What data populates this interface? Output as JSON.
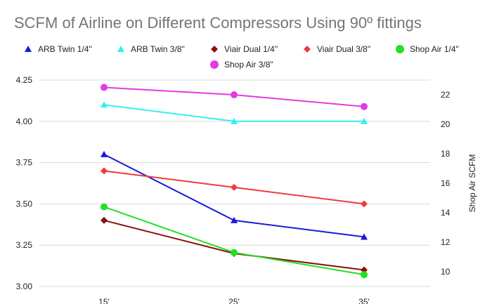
{
  "chart_data": {
    "type": "line",
    "title": "SCFM of Airline on Different Compressors Using 90º fittings",
    "categories": [
      "15'",
      "25'",
      "35'"
    ],
    "left_axis": {
      "label": "",
      "ylim": [
        3.0,
        4.25
      ],
      "ticks": [
        "3.00",
        "3.25",
        "3.50",
        "3.75",
        "4.00",
        "4.25"
      ]
    },
    "right_axis": {
      "label": "Shop Air SCFM",
      "ylim": [
        9,
        23
      ],
      "ticks": [
        "10",
        "12",
        "14",
        "16",
        "18",
        "20",
        "22"
      ]
    },
    "grid": true,
    "legend_position": "top",
    "series": [
      {
        "name": "ARB Twin 1/4\"",
        "axis": "left",
        "marker": "triangle",
        "color": "#1a1adb",
        "values": [
          3.8,
          3.4,
          3.3
        ]
      },
      {
        "name": "ARB Twin 3/8\"",
        "axis": "left",
        "marker": "triangle",
        "color": "#33f0f0",
        "values": [
          4.1,
          4.0,
          4.0
        ]
      },
      {
        "name": "Viair Dual 1/4\"",
        "axis": "left",
        "marker": "diamond",
        "color": "#8b0e0e",
        "values": [
          3.4,
          3.2,
          3.1
        ]
      },
      {
        "name": "Viair Dual 3/8\"",
        "axis": "left",
        "marker": "diamond",
        "color": "#f23a3a",
        "values": [
          3.7,
          3.6,
          3.5
        ]
      },
      {
        "name": "Shop Air 1/4\"",
        "axis": "right",
        "marker": "circle",
        "color": "#22e022",
        "values": [
          14.4,
          11.3,
          9.8
        ]
      },
      {
        "name": "Shop Air 3/8\"",
        "axis": "right",
        "marker": "circle",
        "color": "#e23ce2",
        "values": [
          22.5,
          22.0,
          21.2
        ]
      }
    ]
  }
}
